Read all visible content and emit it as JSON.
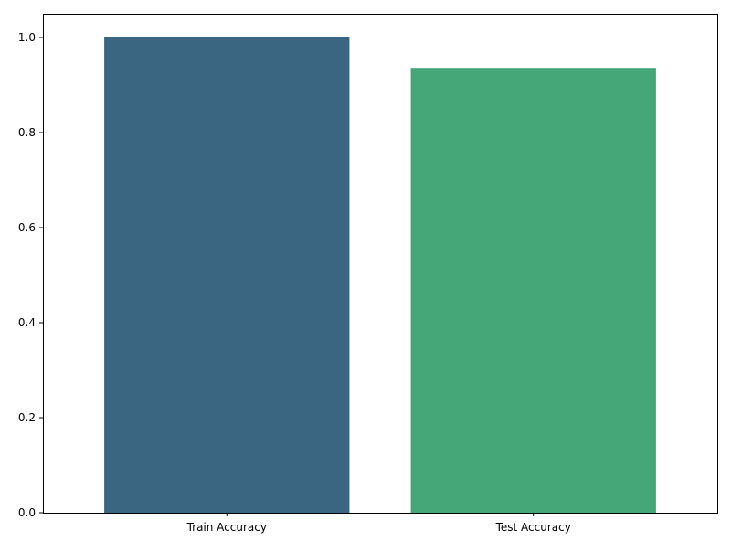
{
  "chart_data": {
    "type": "bar",
    "categories": [
      "Train Accuracy",
      "Test Accuracy"
    ],
    "values": [
      1.0,
      0.9362
    ],
    "colors": [
      "#3b6682",
      "#45a778"
    ],
    "title": "",
    "xlabel": "",
    "ylabel": "",
    "ylim": [
      0,
      1.05
    ],
    "yticks": [
      0.0,
      0.2,
      0.4,
      0.6,
      0.8,
      1.0
    ],
    "ytick_labels": [
      "0.0",
      "0.2",
      "0.4",
      "0.6",
      "0.8",
      "1.0"
    ],
    "grid": false,
    "legend": "none"
  }
}
